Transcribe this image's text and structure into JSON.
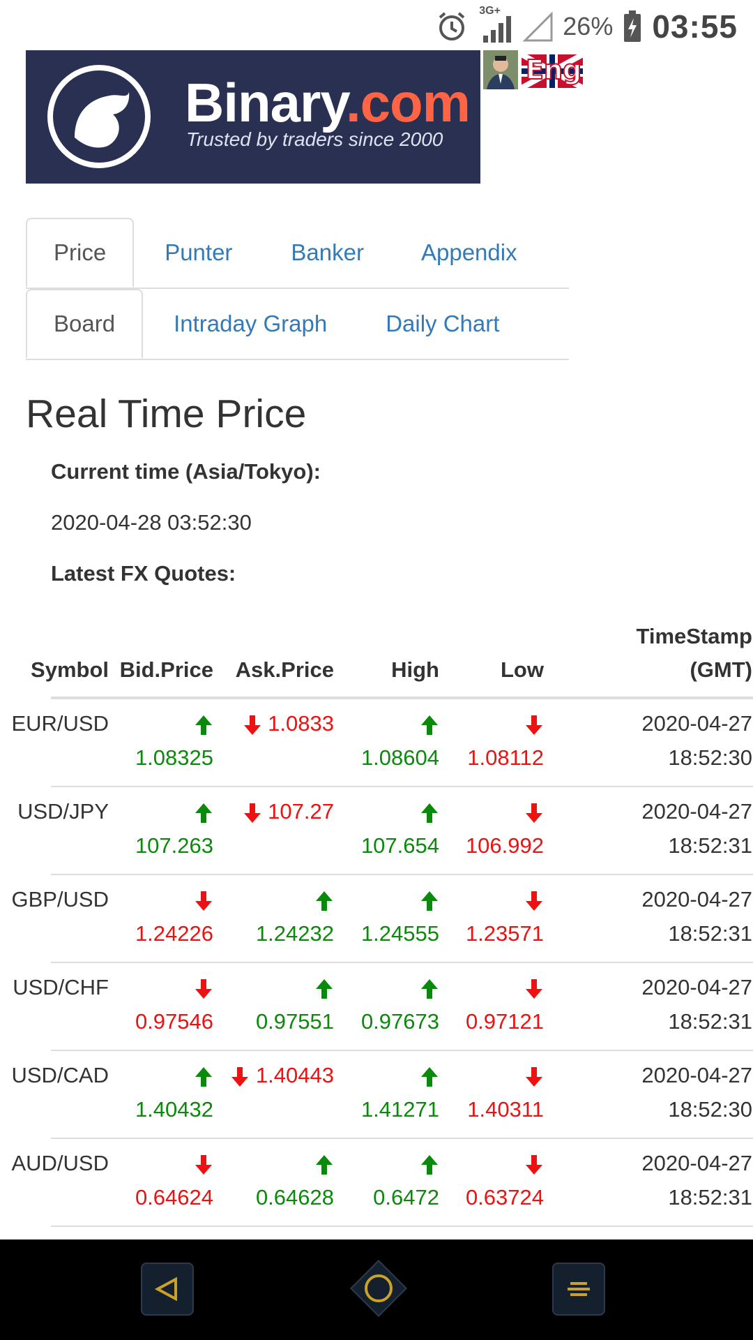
{
  "status_bar": {
    "network_label": "3G+",
    "battery_percent": "26%",
    "time": "03:55",
    "icons": [
      "alarm-icon",
      "signal-3g-icon",
      "signal-empty-icon",
      "battery-charging-icon"
    ]
  },
  "logo": {
    "brand_main": "Binary",
    "brand_suffix": ".com",
    "tagline": "Trusted by traders since 2000",
    "brand_bg": "#2a3052",
    "brand_accent": "#ff6444"
  },
  "lang_flag_label": "Eng",
  "tabs_primary": [
    {
      "label": "Price",
      "active": true
    },
    {
      "label": "Punter",
      "active": false
    },
    {
      "label": "Banker",
      "active": false
    },
    {
      "label": "Appendix",
      "active": false
    }
  ],
  "tabs_secondary": [
    {
      "label": "Board",
      "active": true
    },
    {
      "label": "Intraday Graph",
      "active": false
    },
    {
      "label": "Daily Chart",
      "active": false
    }
  ],
  "main": {
    "title": "Real Time Price",
    "current_time_label": "Current time (Asia/Tokyo):",
    "current_time_value": "2020-04-28 03:52:30",
    "quotes_label": "Latest FX Quotes:"
  },
  "table": {
    "headers": {
      "symbol": "Symbol",
      "bid": "Bid.Price",
      "ask": "Ask.Price",
      "high": "High",
      "low": "Low",
      "timestamp_line1": "TimeStamp",
      "timestamp_line2": "(GMT)"
    },
    "rows": [
      {
        "symbol": "EUR/USD",
        "bid": "1.08325",
        "bid_dir": "up",
        "ask": "1.0833",
        "ask_dir": "down",
        "high": "1.08604",
        "high_dir": "up",
        "low": "1.08112",
        "low_dir": "down",
        "date": "2020-04-27",
        "time": "18:52:30"
      },
      {
        "symbol": "USD/JPY",
        "bid": "107.263",
        "bid_dir": "up",
        "ask": "107.27",
        "ask_dir": "down",
        "high": "107.654",
        "high_dir": "up",
        "low": "106.992",
        "low_dir": "down",
        "date": "2020-04-27",
        "time": "18:52:31"
      },
      {
        "symbol": "GBP/USD",
        "bid": "1.24226",
        "bid_dir": "down",
        "ask": "1.24232",
        "ask_dir": "up",
        "high": "1.24555",
        "high_dir": "up",
        "low": "1.23571",
        "low_dir": "down",
        "date": "2020-04-27",
        "time": "18:52:31"
      },
      {
        "symbol": "USD/CHF",
        "bid": "0.97546",
        "bid_dir": "down",
        "ask": "0.97551",
        "ask_dir": "up",
        "high": "0.97673",
        "high_dir": "up",
        "low": "0.97121",
        "low_dir": "down",
        "date": "2020-04-27",
        "time": "18:52:31"
      },
      {
        "symbol": "USD/CAD",
        "bid": "1.40432",
        "bid_dir": "up",
        "ask": "1.40443",
        "ask_dir": "down",
        "high": "1.41271",
        "high_dir": "up",
        "low": "1.40311",
        "low_dir": "down",
        "date": "2020-04-27",
        "time": "18:52:30"
      },
      {
        "symbol": "AUD/USD",
        "bid": "0.64624",
        "bid_dir": "down",
        "ask": "0.64628",
        "ask_dir": "up",
        "high": "0.6472",
        "high_dir": "up",
        "low": "0.63724",
        "low_dir": "down",
        "date": "2020-04-27",
        "time": "18:52:31"
      }
    ],
    "colors": {
      "up": "#0a8a0a",
      "down": "#ee1111"
    }
  },
  "nav_bar": {
    "buttons": [
      "back-icon",
      "home-icon",
      "menu-icon"
    ],
    "accent": "#c9a227"
  }
}
